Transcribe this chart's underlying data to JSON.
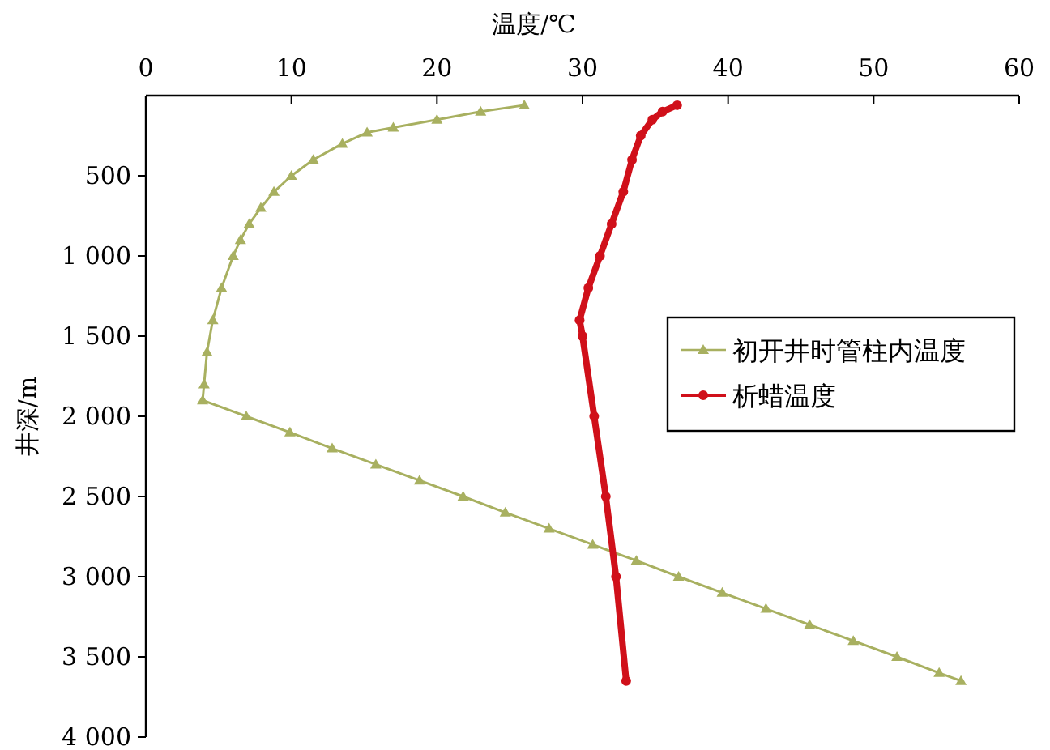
{
  "chart_data": {
    "type": "line",
    "xlabel": "温度/℃",
    "ylabel": "井深/m",
    "xlim": [
      0,
      60
    ],
    "ylim": [
      4000,
      0
    ],
    "xticks": [
      0,
      10,
      20,
      30,
      40,
      50,
      60
    ],
    "yticks": [
      {
        "value": 500,
        "label": "500"
      },
      {
        "value": 1000,
        "label": "1 000"
      },
      {
        "value": 1500,
        "label": "1 500"
      },
      {
        "value": 2000,
        "label": "2 000"
      },
      {
        "value": 2500,
        "label": "2 500"
      },
      {
        "value": 3000,
        "label": "3 000"
      },
      {
        "value": 3500,
        "label": "3 500"
      },
      {
        "value": 4000,
        "label": "4 000"
      }
    ],
    "legend": "right",
    "grid": false,
    "series": [
      {
        "name": "初开井时管柱内温度",
        "color": "#a8b060",
        "marker": "triangle",
        "x": [
          26,
          23,
          20,
          17,
          15.2,
          13.5,
          11.5,
          10,
          8.8,
          7.9,
          7.1,
          6.5,
          6.0,
          5.2,
          4.6,
          4.2,
          4.0,
          3.9,
          6.9,
          9.9,
          12.8,
          15.8,
          18.8,
          21.8,
          24.7,
          27.7,
          30.7,
          33.7,
          36.6,
          39.6,
          42.6,
          45.6,
          48.6,
          51.6,
          54.5,
          56.0
        ],
        "values": [
          60,
          100,
          150,
          200,
          230,
          300,
          400,
          500,
          600,
          700,
          800,
          900,
          1000,
          1200,
          1400,
          1600,
          1800,
          1900,
          2000,
          2100,
          2200,
          2300,
          2400,
          2500,
          2600,
          2700,
          2800,
          2900,
          3000,
          3100,
          3200,
          3300,
          3400,
          3500,
          3600,
          3650
        ]
      },
      {
        "name": "析蜡温度",
        "color": "#d0101a",
        "marker": "circle",
        "x": [
          36.5,
          35.5,
          34.8,
          34.0,
          33.4,
          32.8,
          32.0,
          31.2,
          30.4,
          29.8,
          30.0,
          30.8,
          31.6,
          32.3,
          33.0
        ],
        "values": [
          60,
          100,
          150,
          250,
          400,
          600,
          800,
          1000,
          1200,
          1400,
          1500,
          2000,
          2500,
          3000,
          3650
        ]
      }
    ]
  }
}
